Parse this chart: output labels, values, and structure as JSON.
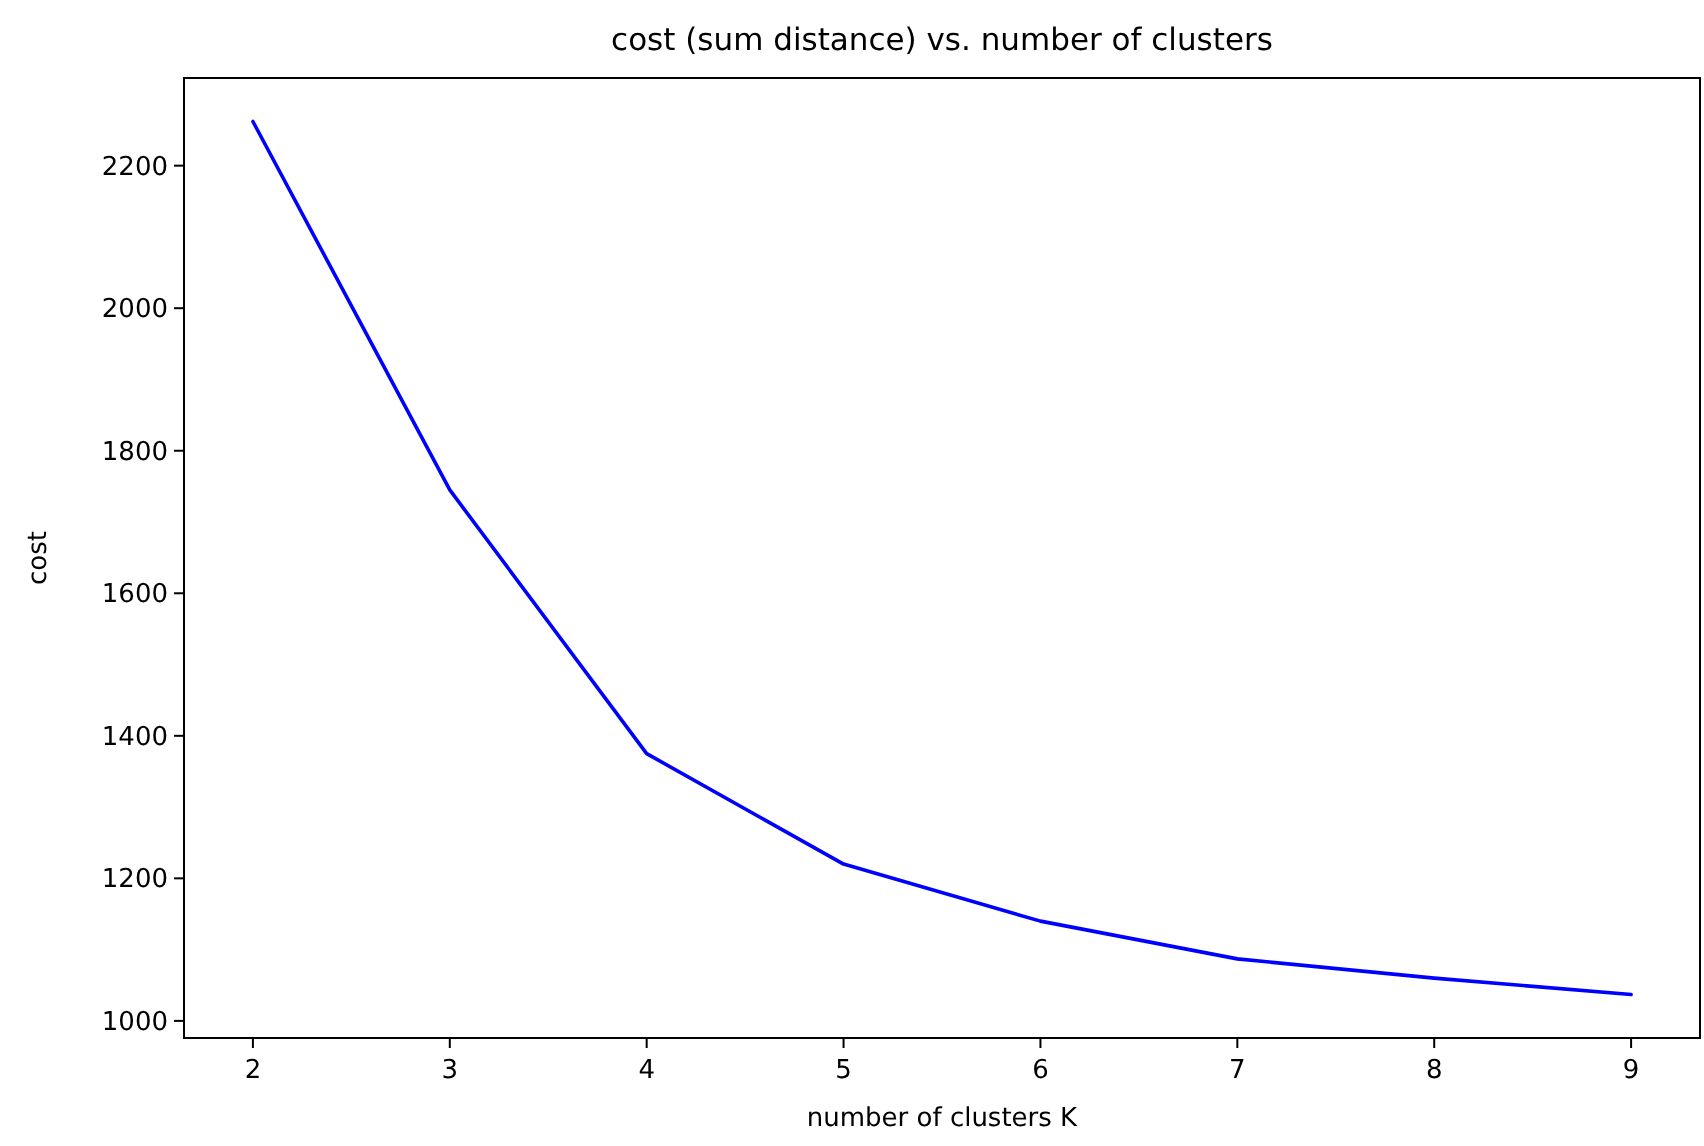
{
  "chart_data": {
    "type": "line",
    "title": "cost (sum distance) vs. number of clusters",
    "xlabel": "number of clusters K",
    "ylabel": "cost",
    "x": [
      2,
      3,
      4,
      5,
      6,
      7,
      8,
      9
    ],
    "series": [
      {
        "color": "#0000ff",
        "values": [
          2262,
          1745,
          1375,
          1220,
          1140,
          1087,
          1060,
          1037
        ]
      }
    ],
    "xlim": [
      1.65,
      9.35
    ],
    "xticks": [
      2,
      3,
      4,
      5,
      6,
      7,
      8,
      9
    ],
    "ylim": [
      976,
      2323
    ],
    "yticks": [
      1000,
      1200,
      1400,
      1600,
      1800,
      2000,
      2200
    ],
    "grid": false,
    "marker": "none",
    "line_style": "solid"
  }
}
